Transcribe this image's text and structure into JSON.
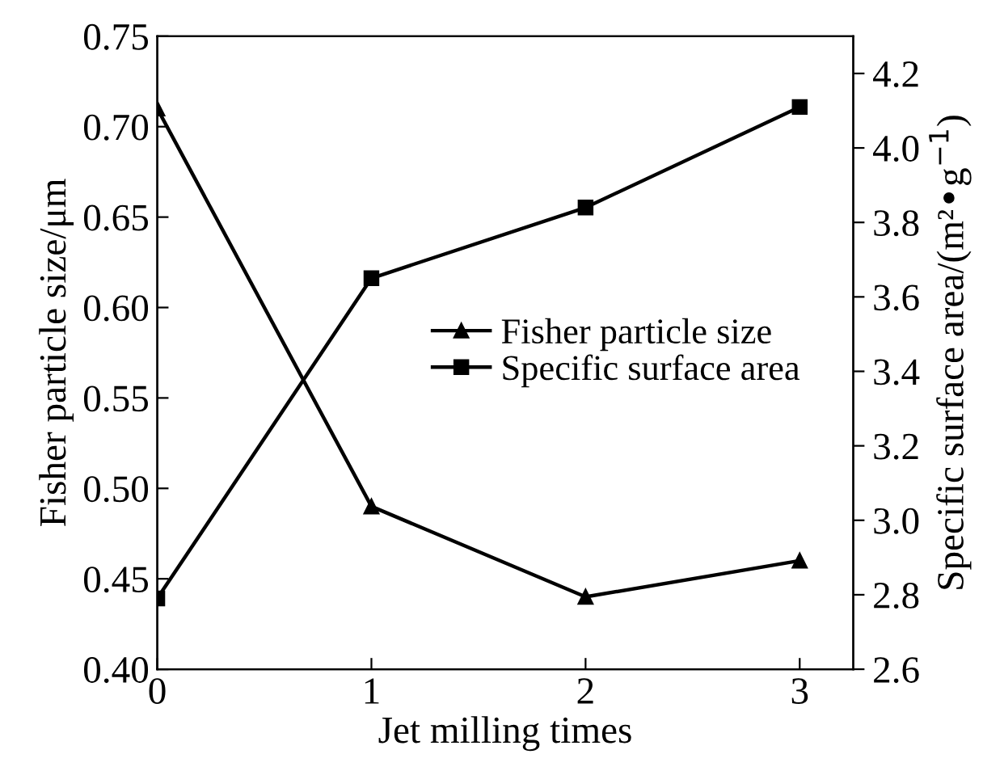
{
  "chart_data": {
    "type": "line",
    "xlabel": "Jet milling times",
    "ylabel": "Fisher particle size/μm",
    "y2label": "Specific surface area/(m²•g$^{−1}$)",
    "x": [
      0,
      1,
      2,
      3
    ],
    "xlim": [
      0,
      3.25
    ],
    "xticks": [
      0,
      1,
      2,
      3
    ],
    "ylim": [
      0.4,
      0.75
    ],
    "yticks": [
      {
        "value": 0.4,
        "label": "0.40"
      },
      0.45,
      {
        "value": 0.5,
        "label": "0.50"
      },
      0.55,
      {
        "value": 0.6,
        "label": "0.60"
      },
      0.65,
      {
        "value": 0.7,
        "label": "0.70"
      },
      0.75
    ],
    "y2lim": [
      2.6,
      4.3
    ],
    "y2ticks": [
      2.6,
      2.8,
      {
        "value": 3.0,
        "label": "3.0"
      },
      3.2,
      3.4,
      3.6,
      3.8,
      {
        "value": 4.0,
        "label": "4.0"
      },
      4.2
    ],
    "legend": "center right",
    "grid": false,
    "series": [
      {
        "name": "Fisher particle size",
        "color": "#000000",
        "marker": "triangle",
        "values": [
          0.71,
          0.49,
          0.44,
          0.46
        ]
      },
      {
        "name": "Specific surface area",
        "color": "#000000",
        "marker": "square",
        "axis": "y2",
        "values": [
          2.79,
          3.65,
          3.84,
          4.11
        ]
      }
    ]
  }
}
